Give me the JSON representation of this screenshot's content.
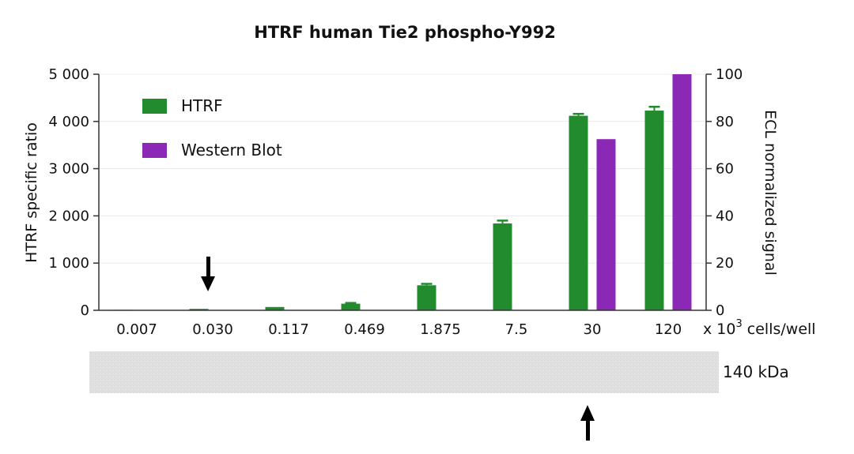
{
  "chart_data": {
    "type": "bar",
    "title": "HTRF human Tie2 phospho-Y992",
    "categories": [
      "0.007",
      "0.030",
      "0.117",
      "0.469",
      "1.875",
      "7.5",
      "30",
      "120"
    ],
    "x_unit_label": "x 10",
    "x_unit_exponent": "3",
    "x_unit_suffix": " cells/well",
    "y_left": {
      "label": "HTRF specific ratio",
      "ylim": [
        0,
        5000
      ],
      "ticks": [
        0,
        1000,
        2000,
        3000,
        4000,
        5000
      ],
      "tick_labels": [
        "0",
        "1 000",
        "2 000",
        "3 000",
        "4 000",
        "5 000"
      ]
    },
    "y_right": {
      "label": "ECL normalized signal",
      "ylim": [
        0,
        100
      ],
      "ticks": [
        0,
        20,
        40,
        60,
        80,
        100
      ],
      "tick_labels": [
        "0",
        "20",
        "40",
        "60",
        "80",
        "100"
      ]
    },
    "series": [
      {
        "name": "HTRF",
        "axis": "left",
        "color": "#228B2E",
        "values": [
          10,
          30,
          70,
          140,
          530,
          1840,
          4120,
          4230
        ],
        "errors": [
          0,
          0,
          0,
          15,
          30,
          60,
          40,
          80
        ]
      },
      {
        "name": "Western Blot",
        "axis": "right",
        "color": "#8B28B5",
        "values": [
          0,
          0,
          0,
          0,
          0,
          0,
          72.5,
          100
        ],
        "errors": [
          0,
          0,
          0,
          0,
          0,
          0,
          0,
          0
        ]
      }
    ],
    "legend_position": "top-left",
    "grid": true,
    "arrows": [
      {
        "category": "0.030",
        "direction": "down"
      },
      {
        "category": "30",
        "direction": "up"
      }
    ],
    "blot_label": "140 kDa"
  }
}
